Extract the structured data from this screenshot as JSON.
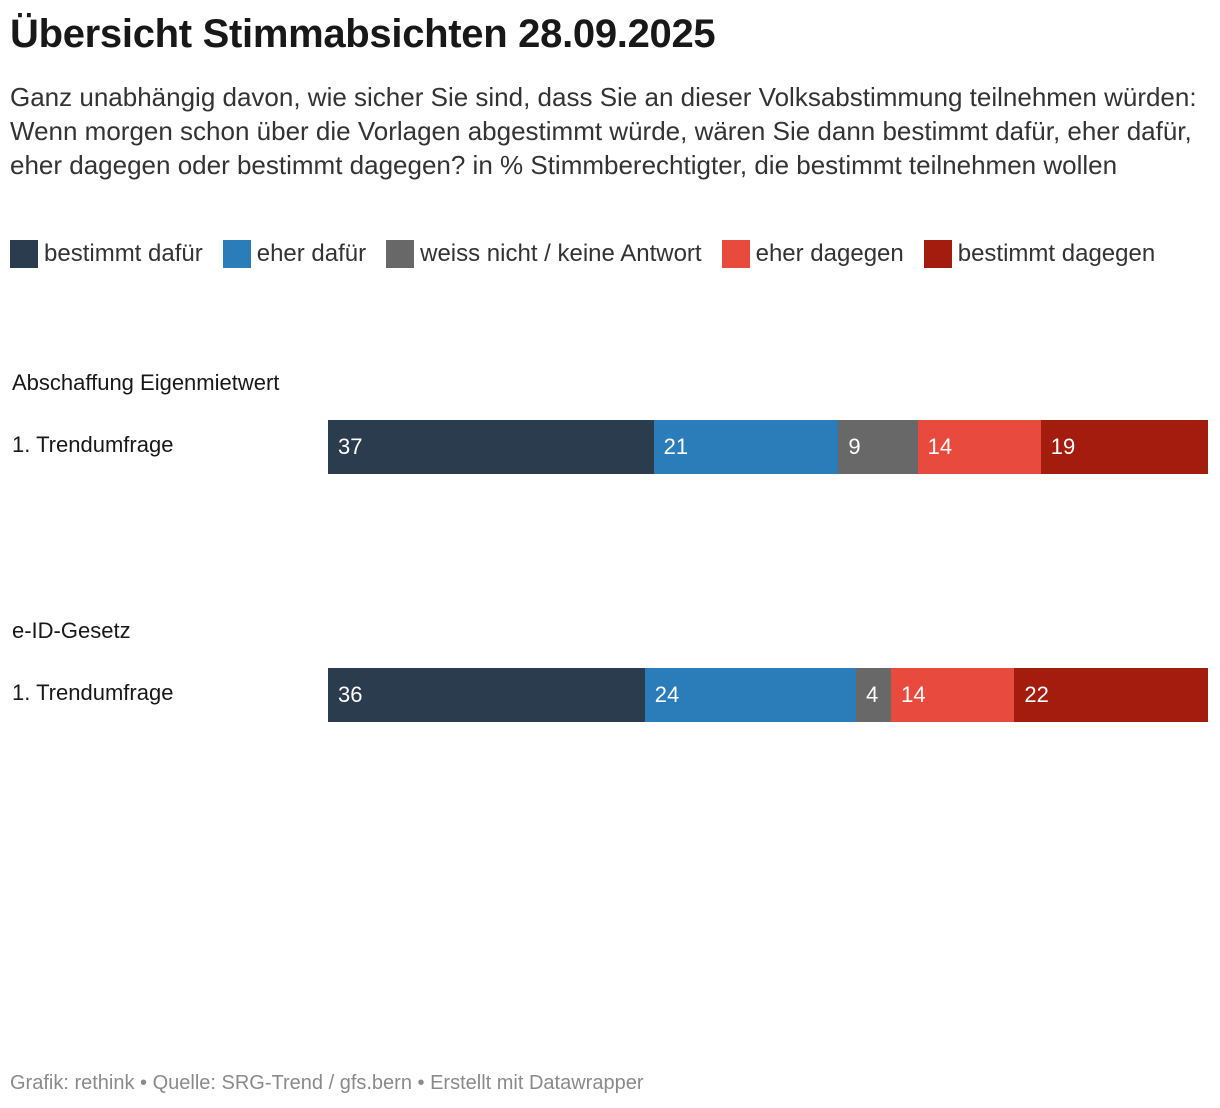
{
  "title": "Übersicht Stimmabsichten 28.09.2025",
  "subtitle": "Ganz unabhängig davon, wie sicher Sie sind, dass Sie an dieser Volksabstimmung teilnehmen würden: Wenn morgen schon über die Vorlagen abgestimmt würde, wären Sie dann bestimmt dafür, eher dafür, eher dagegen oder bestimmt dagegen? in % Stimmberechtigter, die bestimmt teilnehmen wollen",
  "footer": "Grafik: rethink • Quelle: SRG-Trend / gfs.bern • Erstellt mit Datawrapper",
  "chart_data": {
    "type": "bar",
    "stacked": true,
    "orientation": "horizontal",
    "unit": "%",
    "series": [
      {
        "name": "bestimmt dafür",
        "color": "#2b3c4e"
      },
      {
        "name": "eher dafür",
        "color": "#2a7db8"
      },
      {
        "name": "weiss nicht / keine Antwort",
        "color": "#686868"
      },
      {
        "name": "eher dagegen",
        "color": "#e84b3d"
      },
      {
        "name": "bestimmt dagegen",
        "color": "#a31c0d"
      }
    ],
    "groups": [
      {
        "title": "Abschaffung Eigenmietwert",
        "rows": [
          {
            "label": "1. Trendumfrage",
            "values": [
              37,
              21,
              9,
              14,
              19
            ]
          }
        ]
      },
      {
        "title": "e-ID-Gesetz",
        "rows": [
          {
            "label": "1. Trendumfrage",
            "values": [
              36,
              24,
              4,
              14,
              22
            ]
          }
        ]
      }
    ]
  }
}
